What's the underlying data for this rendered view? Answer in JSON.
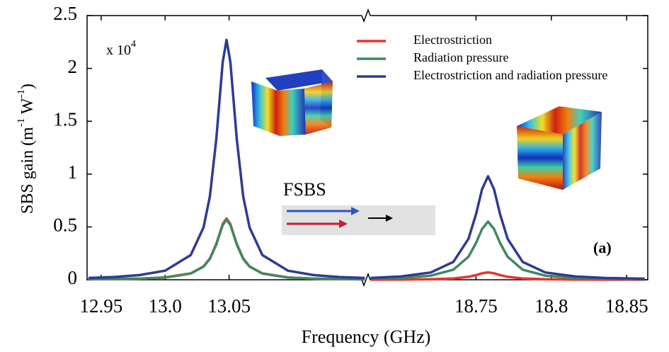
{
  "chart_data": {
    "type": "line",
    "ylabel": [
      "SBS gain (m",
      "-1",
      " W",
      "-1",
      ")"
    ],
    "xlabel": "Frequency (GHz)",
    "multiplier": [
      "x 10",
      "4"
    ],
    "annotations": [
      "FSBS",
      "(a)"
    ],
    "x_segments": [
      [
        12.939,
        13.157
      ],
      [
        18.677,
        18.864
      ]
    ],
    "ylim": [
      0,
      2.5
    ],
    "yticks": [
      0,
      0.5,
      1,
      1.5,
      2,
      2.5
    ],
    "xticks": [
      12.95,
      {
        "value": 13.0,
        "label": "13.0"
      },
      13.05,
      18.75,
      18.8,
      18.85
    ],
    "x": [
      12.94,
      12.96,
      12.98,
      13.0,
      13.02,
      13.03,
      13.035,
      13.04,
      13.045,
      13.048,
      13.051,
      13.056,
      13.061,
      13.066,
      13.076,
      13.096,
      13.116,
      13.136,
      13.156,
      18.68,
      18.7,
      18.72,
      18.735,
      18.745,
      18.75,
      18.754,
      18.758,
      18.762,
      18.766,
      18.771,
      18.781,
      18.796,
      18.816,
      18.836,
      18.862
    ],
    "series": [
      {
        "name": "Electrostriction",
        "color": "#e8332e",
        "values": [
          0.004,
          0.007,
          0.011,
          0.022,
          0.06,
          0.126,
          0.202,
          0.339,
          0.527,
          0.58,
          0.527,
          0.339,
          0.202,
          0.126,
          0.06,
          0.022,
          0.011,
          0.007,
          0.004,
          0.001,
          0.002,
          0.005,
          0.012,
          0.028,
          0.044,
          0.061,
          0.07,
          0.061,
          0.044,
          0.028,
          0.012,
          0.005,
          0.002,
          0.001,
          0.001
        ]
      },
      {
        "name": "Radiation pressure",
        "color": "#3f8a5e",
        "values": [
          0.004,
          0.007,
          0.011,
          0.021,
          0.059,
          0.124,
          0.198,
          0.333,
          0.518,
          0.57,
          0.518,
          0.333,
          0.198,
          0.124,
          0.059,
          0.021,
          0.011,
          0.007,
          0.004,
          0.01,
          0.017,
          0.039,
          0.095,
          0.217,
          0.348,
          0.48,
          0.55,
          0.48,
          0.348,
          0.217,
          0.095,
          0.039,
          0.017,
          0.01,
          0.006
        ]
      },
      {
        "name": "Electrostriction and radiation pressure",
        "color": "#2f3a93",
        "values": [
          0.017,
          0.026,
          0.044,
          0.086,
          0.234,
          0.495,
          0.79,
          1.33,
          2.06,
          2.27,
          2.06,
          1.33,
          0.79,
          0.495,
          0.234,
          0.086,
          0.044,
          0.026,
          0.017,
          0.017,
          0.031,
          0.069,
          0.169,
          0.387,
          0.62,
          0.856,
          0.98,
          0.856,
          0.62,
          0.387,
          0.169,
          0.069,
          0.031,
          0.017,
          0.01
        ]
      }
    ]
  }
}
